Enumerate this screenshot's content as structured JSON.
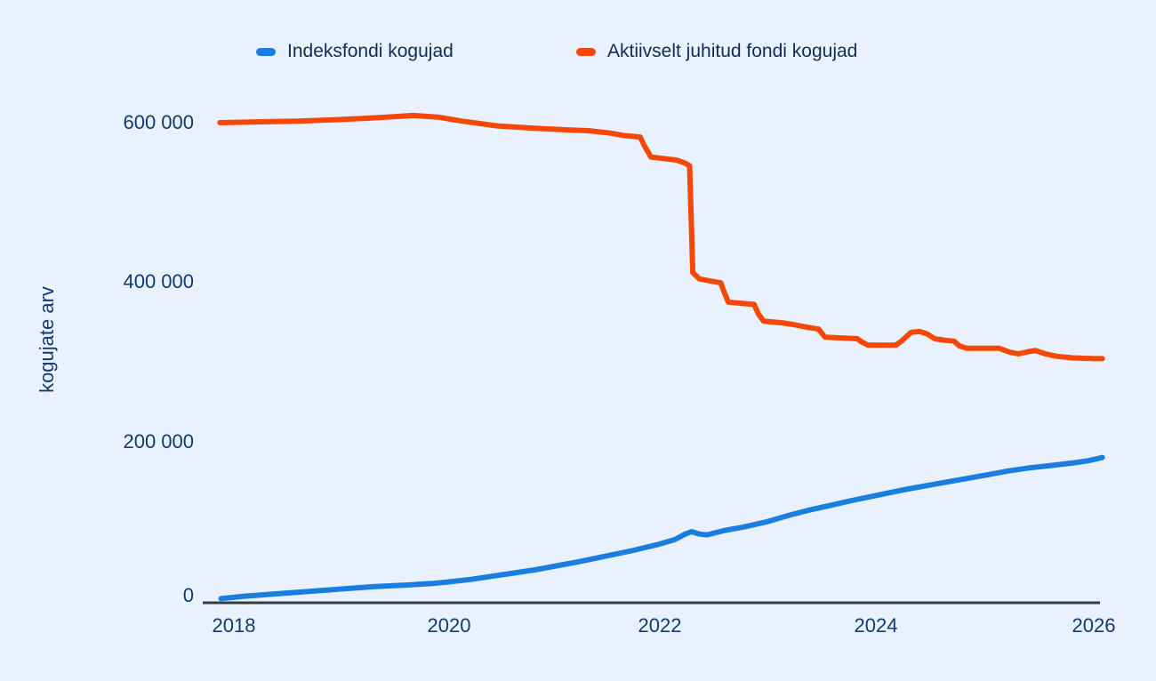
{
  "colors": {
    "background": "#e9f2fc",
    "axis": "#333c45",
    "tick_text": "#123a70",
    "legend_text": "#112c56",
    "index_fund_line": "#1a7de0",
    "active_fund_line": "#f54708"
  },
  "legend": {
    "items": [
      {
        "label": "Indeksfondi kogujad",
        "color": "#1a7de0"
      },
      {
        "label": "Aktiivselt juhitud fondi kogujad",
        "color": "#f54708"
      }
    ]
  },
  "chart_data": {
    "type": "line",
    "title": "",
    "xlabel": "",
    "ylabel": "kogujate arv",
    "xlim": [
      2017.85,
      2026.15
    ],
    "ylim": [
      0,
      650000
    ],
    "grid": false,
    "legend_position": "top",
    "x_tick_labels": [
      "2018",
      "2020",
      "2022",
      "2024",
      "2026"
    ],
    "x_tick_values": [
      2018,
      2020,
      2022,
      2024,
      2026
    ],
    "y_tick_labels": [
      "600 000",
      "400 000",
      "200 000",
      "0"
    ],
    "y_tick_values": [
      600000,
      400000,
      200000,
      0
    ],
    "series": [
      {
        "name": "Indeksfondi kogujad",
        "color": "#1a7de0",
        "points": [
          [
            2017.88,
            3000
          ],
          [
            2018.1,
            6000
          ],
          [
            2018.4,
            9000
          ],
          [
            2018.7,
            12000
          ],
          [
            2019.0,
            15000
          ],
          [
            2019.3,
            18000
          ],
          [
            2019.6,
            20000
          ],
          [
            2019.85,
            22000
          ],
          [
            2020.0,
            24000
          ],
          [
            2020.2,
            27000
          ],
          [
            2020.4,
            31000
          ],
          [
            2020.6,
            35000
          ],
          [
            2020.8,
            39000
          ],
          [
            2021.0,
            44000
          ],
          [
            2021.2,
            49000
          ],
          [
            2021.45,
            56000
          ],
          [
            2021.7,
            63000
          ],
          [
            2021.95,
            71000
          ],
          [
            2022.1,
            77000
          ],
          [
            2022.2,
            84000
          ],
          [
            2022.26,
            87000
          ],
          [
            2022.33,
            84000
          ],
          [
            2022.4,
            83000
          ],
          [
            2022.55,
            88000
          ],
          [
            2022.75,
            93000
          ],
          [
            2022.95,
            99000
          ],
          [
            2023.15,
            107000
          ],
          [
            2023.35,
            114000
          ],
          [
            2023.55,
            120000
          ],
          [
            2023.75,
            126000
          ],
          [
            2024.0,
            133000
          ],
          [
            2024.25,
            140000
          ],
          [
            2024.5,
            146000
          ],
          [
            2024.75,
            152000
          ],
          [
            2025.0,
            158000
          ],
          [
            2025.2,
            163000
          ],
          [
            2025.4,
            167000
          ],
          [
            2025.6,
            170000
          ],
          [
            2025.8,
            173000
          ],
          [
            2025.95,
            176000
          ],
          [
            2026.05,
            179000
          ],
          [
            2026.08,
            180000
          ]
        ]
      },
      {
        "name": "Aktiivselt juhitud fondi kogujad",
        "color": "#f54708",
        "points": [
          [
            2017.87,
            600000
          ],
          [
            2018.2,
            601000
          ],
          [
            2018.6,
            602000
          ],
          [
            2019.0,
            604000
          ],
          [
            2019.3,
            606000
          ],
          [
            2019.67,
            609000
          ],
          [
            2019.9,
            607000
          ],
          [
            2020.12,
            602000
          ],
          [
            2020.45,
            596000
          ],
          [
            2020.8,
            593000
          ],
          [
            2021.1,
            591000
          ],
          [
            2021.3,
            590000
          ],
          [
            2021.5,
            587000
          ],
          [
            2021.62,
            584000
          ],
          [
            2021.78,
            582000
          ],
          [
            2021.82,
            571000
          ],
          [
            2021.88,
            557000
          ],
          [
            2022.0,
            555000
          ],
          [
            2022.12,
            553000
          ],
          [
            2022.2,
            549000
          ],
          [
            2022.24,
            546000
          ],
          [
            2022.27,
            412000
          ],
          [
            2022.33,
            404000
          ],
          [
            2022.45,
            401000
          ],
          [
            2022.53,
            399000
          ],
          [
            2022.56,
            388000
          ],
          [
            2022.6,
            375000
          ],
          [
            2022.75,
            373000
          ],
          [
            2022.84,
            372000
          ],
          [
            2022.88,
            360000
          ],
          [
            2022.93,
            351000
          ],
          [
            2023.1,
            349000
          ],
          [
            2023.2,
            347000
          ],
          [
            2023.35,
            343000
          ],
          [
            2023.44,
            341000
          ],
          [
            2023.5,
            331000
          ],
          [
            2023.65,
            330000
          ],
          [
            2023.8,
            329000
          ],
          [
            2023.84,
            325000
          ],
          [
            2023.9,
            321000
          ],
          [
            2024.05,
            321000
          ],
          [
            2024.16,
            321000
          ],
          [
            2024.22,
            327000
          ],
          [
            2024.3,
            337000
          ],
          [
            2024.38,
            338000
          ],
          [
            2024.45,
            335000
          ],
          [
            2024.52,
            329000
          ],
          [
            2024.62,
            327000
          ],
          [
            2024.7,
            326000
          ],
          [
            2024.75,
            320000
          ],
          [
            2024.82,
            317000
          ],
          [
            2025.0,
            317000
          ],
          [
            2025.12,
            317000
          ],
          [
            2025.22,
            312000
          ],
          [
            2025.3,
            310000
          ],
          [
            2025.4,
            313000
          ],
          [
            2025.46,
            314000
          ],
          [
            2025.55,
            310000
          ],
          [
            2025.65,
            307000
          ],
          [
            2025.8,
            305000
          ],
          [
            2026.0,
            304000
          ],
          [
            2026.08,
            304000
          ]
        ]
      }
    ]
  }
}
